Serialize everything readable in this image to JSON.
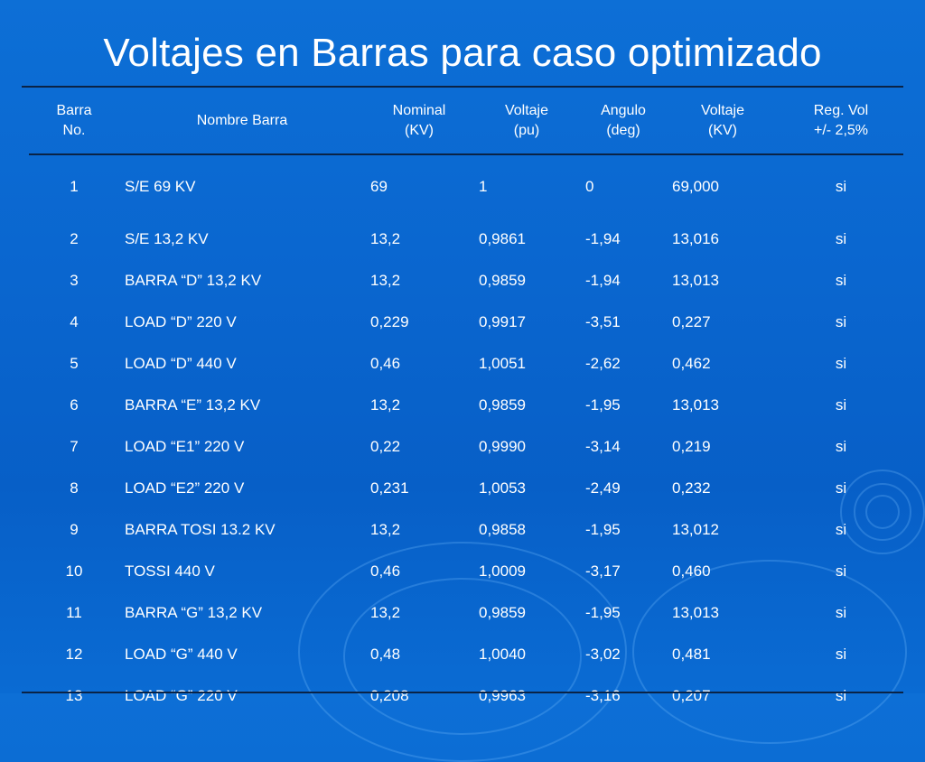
{
  "slide": {
    "title": "Voltajes en Barras para caso optimizado"
  },
  "table": {
    "headers": [
      [
        "Barra",
        "No."
      ],
      [
        "Nombre Barra"
      ],
      [
        "Nominal",
        "(KV)"
      ],
      [
        "Voltaje",
        "(pu)"
      ],
      [
        "Angulo",
        "(deg)"
      ],
      [
        "Voltaje",
        "(KV)"
      ],
      [
        "Reg. Vol",
        "+/- 2,5%"
      ]
    ],
    "rows": [
      [
        "1",
        "S/E 69 KV",
        "69",
        "1",
        "0",
        "69,000",
        "si"
      ],
      [
        "2",
        "S/E 13,2 KV",
        "13,2",
        "0,9861",
        "-1,94",
        "13,016",
        "si"
      ],
      [
        "3",
        "BARRA “D” 13,2 KV",
        "13,2",
        "0,9859",
        "-1,94",
        "13,013",
        "si"
      ],
      [
        "4",
        "LOAD “D” 220 V",
        "0,229",
        "0,9917",
        "-3,51",
        "0,227",
        "si"
      ],
      [
        "5",
        "LOAD “D” 440 V",
        "0,46",
        "1,0051",
        "-2,62",
        "0,462",
        "si"
      ],
      [
        "6",
        "BARRA “E” 13,2 KV",
        "13,2",
        "0,9859",
        "-1,95",
        "13,013",
        "si"
      ],
      [
        "7",
        "LOAD “E1” 220 V",
        "0,22",
        "0,9990",
        "-3,14",
        "0,219",
        "si"
      ],
      [
        "8",
        "LOAD “E2” 220 V",
        "0,231",
        "1,0053",
        "-2,49",
        "0,232",
        "si"
      ],
      [
        "9",
        "BARRA TOSI 13.2 KV",
        "13,2",
        "0,9858",
        "-1,95",
        "13,012",
        "si"
      ],
      [
        "10",
        "TOSSI 440 V",
        "0,46",
        "1,0009",
        "-3,17",
        "0,460",
        "si"
      ],
      [
        "11",
        "BARRA “G” 13,2 KV",
        "13,2",
        "0,9859",
        "-1,95",
        "13,013",
        "si"
      ],
      [
        "12",
        "LOAD “G” 440 V",
        "0,48",
        "1,0040",
        "-3,02",
        "0,481",
        "si"
      ],
      [
        "13",
        "LOAD “G” 220 V",
        "0,208",
        "0,9963",
        "-3,16",
        "0,207",
        "si"
      ]
    ]
  },
  "colors": {
    "background": "#0a66cf",
    "text": "#ffffff",
    "rule": "#0a2346"
  }
}
